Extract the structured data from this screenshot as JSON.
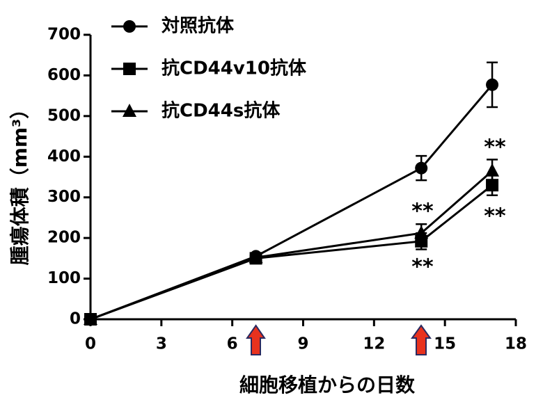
{
  "chart_data": {
    "type": "line",
    "x": [
      0,
      7,
      14,
      17
    ],
    "series": [
      {
        "name": "対照抗体",
        "color": "#000000",
        "marker": "circle",
        "values": [
          0,
          155,
          372,
          577
        ],
        "errors": [
          0,
          8,
          30,
          55
        ]
      },
      {
        "name": "抗CD44v10抗体",
        "color": "#000000",
        "marker": "square",
        "values": [
          0,
          150,
          192,
          330
        ],
        "errors": [
          0,
          8,
          20,
          25
        ]
      },
      {
        "name": "抗CD44s抗体",
        "color": "#000000",
        "marker": "triangle",
        "values": [
          0,
          152,
          212,
          365
        ],
        "errors": [
          0,
          8,
          22,
          28
        ]
      }
    ],
    "xlabel": "細胞移植からの日数",
    "ylabel": "腫瘍体積（mm³）",
    "xlim": [
      0,
      18
    ],
    "xticks": [
      0,
      3,
      6,
      9,
      12,
      15,
      18
    ],
    "ylim": [
      0,
      700
    ],
    "yticks": [
      0,
      100,
      200,
      300,
      400,
      500,
      600,
      700
    ],
    "annotations": [
      "**",
      "**",
      "**",
      "**"
    ],
    "grid": false
  }
}
